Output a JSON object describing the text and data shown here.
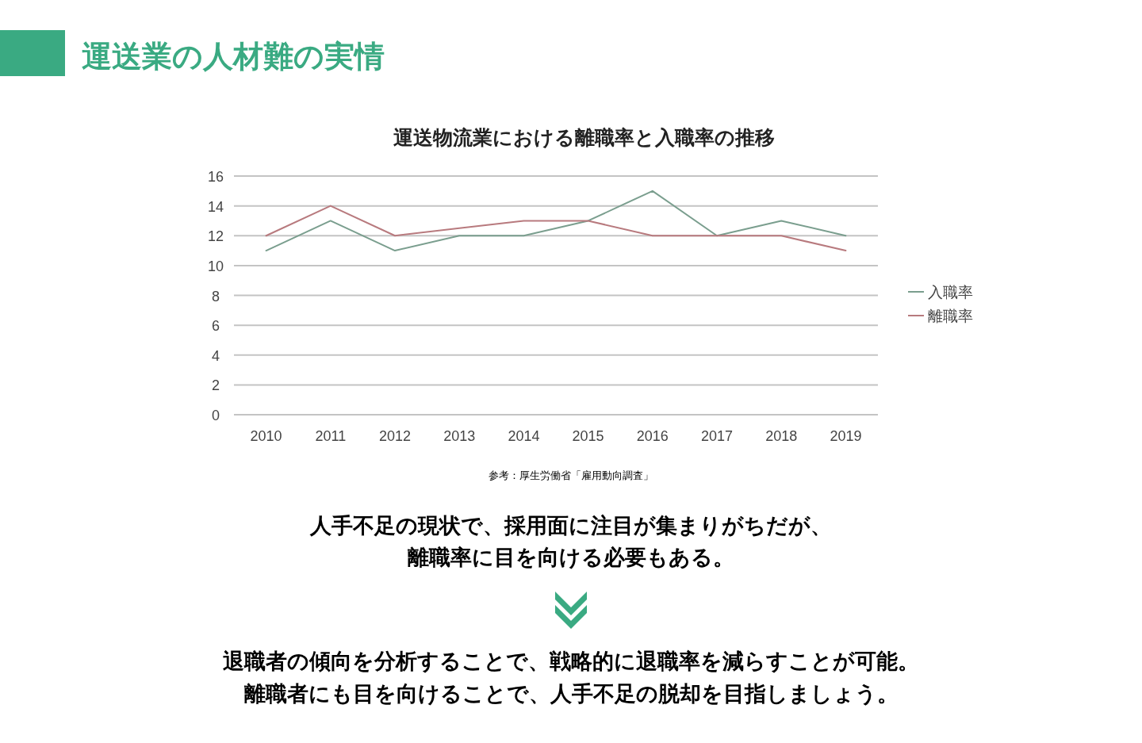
{
  "chart_data": {
    "type": "line",
    "title": "運送物流業における離職率と入職率の推移",
    "categories": [
      "2010",
      "2011",
      "2012",
      "2013",
      "2014",
      "2015",
      "2016",
      "2017",
      "2018",
      "2019"
    ],
    "series": [
      {
        "name": "入職率",
        "color": "#7a9e8e",
        "values": [
          11,
          13,
          11,
          12,
          12,
          13,
          15,
          12,
          13,
          12
        ]
      },
      {
        "name": "離職率",
        "color": "#b87a7e",
        "values": [
          12,
          14,
          12,
          12.5,
          13,
          13,
          12,
          12,
          12,
          11
        ]
      }
    ],
    "ylim": [
      0,
      16
    ],
    "yticks": [
      0,
      2,
      4,
      6,
      8,
      10,
      12,
      14,
      16
    ],
    "grid": "y",
    "legend": "right",
    "marker": "none",
    "line_style": "solid",
    "annotations": [
      "運送業の人材難の実情",
      "参考：厚生労働省「雇用動向調査」",
      "人手不足の現状で、採用面に注目が集まりがちだが、",
      "離職率に目を向ける必要もある。",
      "退職者の傾向を分析することで、戦略的に退職率を減らすことが可能。",
      "離職者にも目を向けることで、人手不足の脱却を目指しましょう。"
    ]
  }
}
